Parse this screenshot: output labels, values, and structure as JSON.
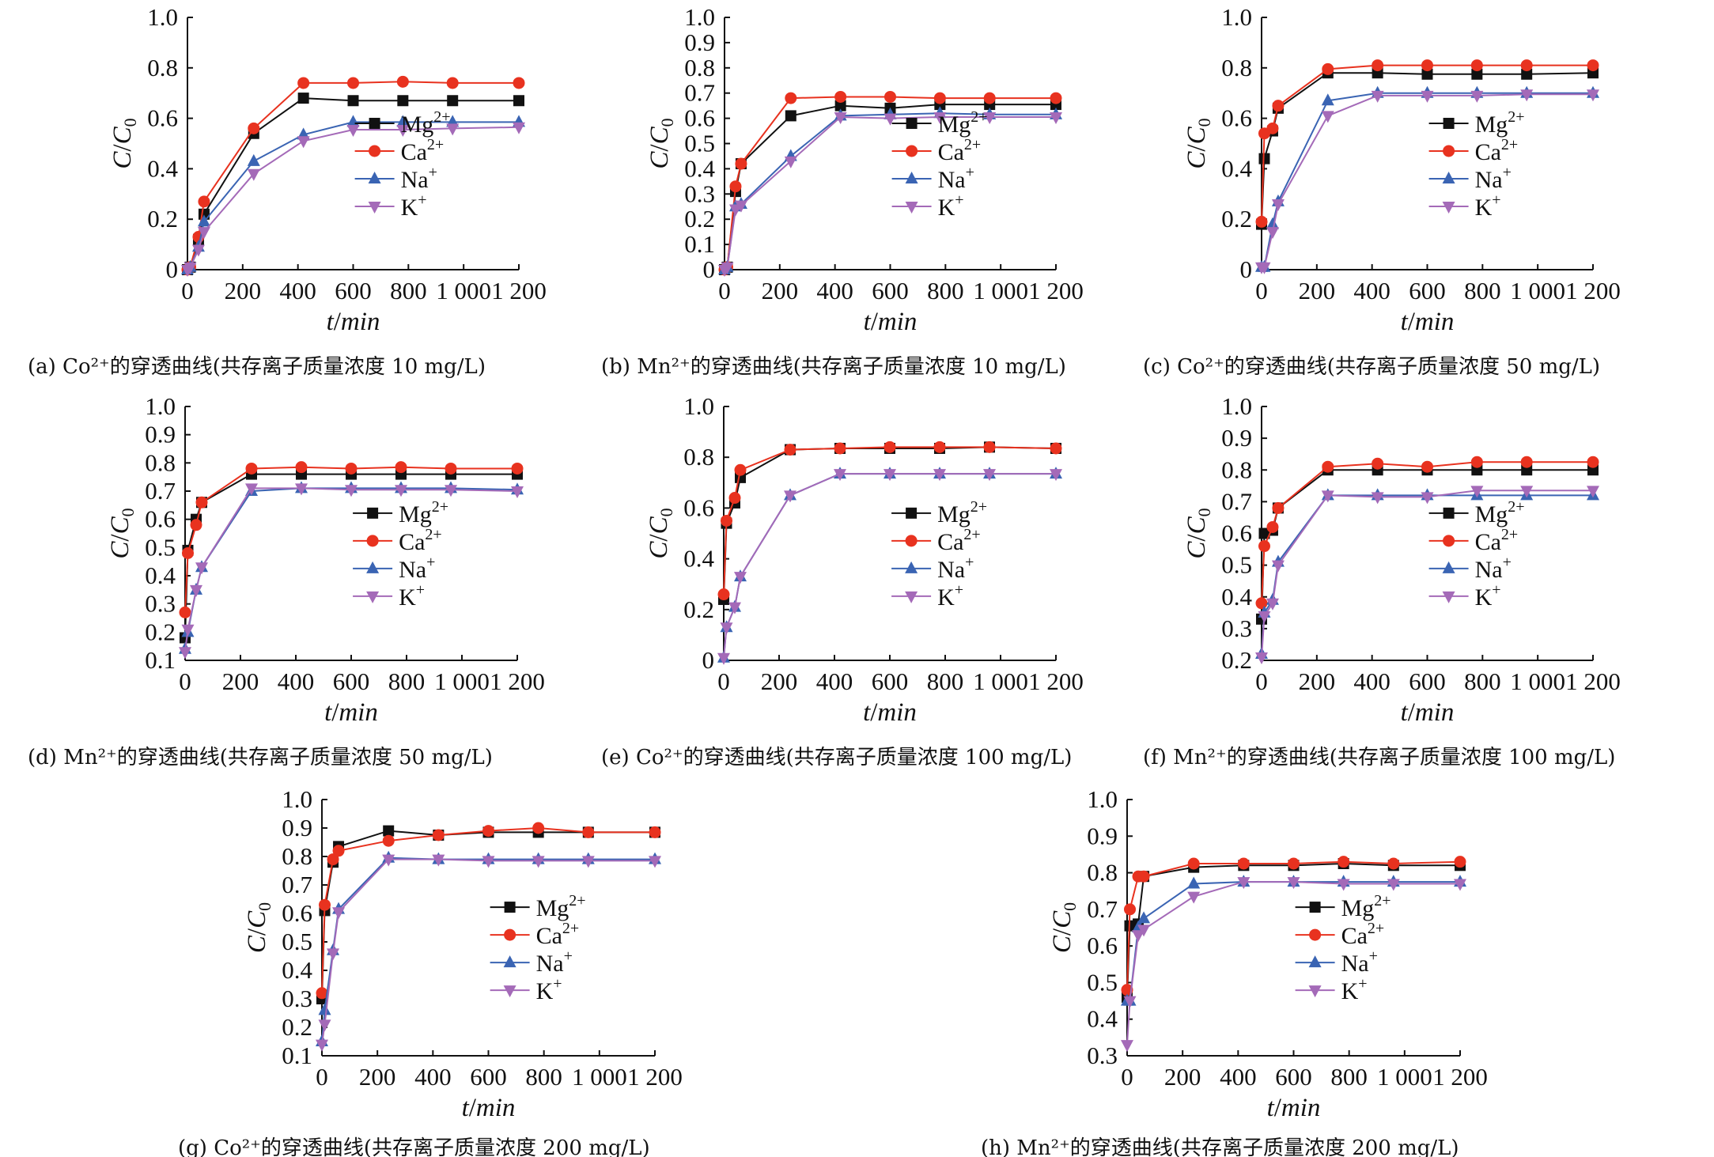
{
  "colors": {
    "Mg": "#111111",
    "Ca": "#e8321f",
    "Na": "#3a64b3",
    "K": "#a46ab8"
  },
  "markers": {
    "Mg": "square",
    "Ca": "circle",
    "Na": "triangle-up",
    "K": "triangle-down"
  },
  "chart_data": [
    {
      "id": "a",
      "type": "line",
      "caption": "(a) Co²⁺的穿透曲线(共存离子质量浓度 10 mg/L)",
      "xlabel": "t/min",
      "ylabel": "C/C₀",
      "xlim": [
        0,
        1200
      ],
      "ylim": [
        0,
        1.0
      ],
      "xticks": [
        0,
        200,
        400,
        600,
        800,
        1000,
        1200
      ],
      "xtick_labels": [
        "0",
        "200",
        "400",
        "600",
        "800",
        "1 000",
        "1 200"
      ],
      "yticks": [
        0,
        0.2,
        0.4,
        0.6,
        0.8,
        1.0
      ],
      "ytick_labels": [
        "0",
        "0.2",
        "0.4",
        "0.6",
        "0.8",
        "1.0"
      ],
      "legend_position": "right-middle",
      "x": [
        0,
        10,
        40,
        60,
        240,
        420,
        600,
        780,
        960,
        1200
      ],
      "series": [
        {
          "name": "Mg2+",
          "key": "Mg",
          "values": [
            0,
            0.01,
            0.12,
            0.22,
            0.54,
            0.68,
            0.67,
            0.67,
            0.67,
            0.67
          ]
        },
        {
          "name": "Ca2+",
          "key": "Ca",
          "values": [
            0,
            0.01,
            0.13,
            0.27,
            0.56,
            0.74,
            0.74,
            0.745,
            0.74,
            0.74
          ]
        },
        {
          "name": "Na+",
          "key": "Na",
          "values": [
            0,
            0.01,
            0.09,
            0.19,
            0.43,
            0.535,
            0.585,
            0.585,
            0.585,
            0.585
          ]
        },
        {
          "name": "K+",
          "key": "K",
          "values": [
            0,
            0.01,
            0.08,
            0.15,
            0.38,
            0.51,
            0.555,
            0.555,
            0.56,
            0.565
          ]
        }
      ]
    },
    {
      "id": "b",
      "type": "line",
      "caption": "(b) Mn²⁺的穿透曲线(共存离子质量浓度 10 mg/L)",
      "xlabel": "t/min",
      "ylabel": "C/C₀",
      "xlim": [
        0,
        1200
      ],
      "ylim": [
        0,
        1.0
      ],
      "xticks": [
        0,
        200,
        400,
        600,
        800,
        1000,
        1200
      ],
      "xtick_labels": [
        "0",
        "200",
        "400",
        "600",
        "800",
        "1 000",
        "1 200"
      ],
      "yticks": [
        0,
        0.1,
        0.2,
        0.3,
        0.4,
        0.5,
        0.6,
        0.7,
        0.8,
        0.9,
        1.0
      ],
      "ytick_labels": [
        "0",
        "0.1",
        "0.2",
        "0.3",
        "0.4",
        "0.5",
        "0.6",
        "0.7",
        "0.8",
        "0.9",
        "1.0"
      ],
      "legend_position": "right-middle",
      "x": [
        0,
        10,
        40,
        60,
        240,
        420,
        600,
        780,
        960,
        1200
      ],
      "series": [
        {
          "name": "Mg2+",
          "key": "Mg",
          "values": [
            0,
            0.01,
            0.31,
            0.42,
            0.61,
            0.65,
            0.64,
            0.655,
            0.655,
            0.655
          ]
        },
        {
          "name": "Ca2+",
          "key": "Ca",
          "values": [
            0,
            0.01,
            0.33,
            0.42,
            0.68,
            0.685,
            0.685,
            0.68,
            0.68,
            0.68
          ]
        },
        {
          "name": "Na+",
          "key": "Na",
          "values": [
            0,
            0.01,
            0.25,
            0.26,
            0.45,
            0.61,
            0.615,
            0.62,
            0.615,
            0.615
          ]
        },
        {
          "name": "K+",
          "key": "K",
          "values": [
            0,
            0.01,
            0.24,
            0.255,
            0.43,
            0.605,
            0.6,
            0.605,
            0.605,
            0.605
          ]
        }
      ]
    },
    {
      "id": "c",
      "type": "line",
      "caption": "(c) Co²⁺的穿透曲线(共存离子质量浓度 50 mg/L)",
      "xlabel": "t/min",
      "ylabel": "C/C₀",
      "xlim": [
        0,
        1200
      ],
      "ylim": [
        0,
        1.0
      ],
      "xticks": [
        0,
        200,
        400,
        600,
        800,
        1000,
        1200
      ],
      "xtick_labels": [
        "0",
        "200",
        "400",
        "600",
        "800",
        "1 000",
        "1 200"
      ],
      "yticks": [
        0,
        0.2,
        0.4,
        0.6,
        0.8,
        1.0
      ],
      "ytick_labels": [
        "0",
        "0.2",
        "0.4",
        "0.6",
        "0.8",
        "1.0"
      ],
      "legend_position": "right-middle",
      "x": [
        0,
        10,
        40,
        60,
        240,
        420,
        600,
        780,
        960,
        1200
      ],
      "series": [
        {
          "name": "Mg2+",
          "key": "Mg",
          "values": [
            0.18,
            0.44,
            0.55,
            0.64,
            0.78,
            0.78,
            0.775,
            0.775,
            0.775,
            0.78
          ]
        },
        {
          "name": "Ca2+",
          "key": "Ca",
          "values": [
            0.19,
            0.54,
            0.56,
            0.65,
            0.795,
            0.81,
            0.81,
            0.81,
            0.81,
            0.81
          ]
        },
        {
          "name": "Na+",
          "key": "Na",
          "values": [
            0.01,
            0.01,
            0.18,
            0.27,
            0.67,
            0.7,
            0.7,
            0.7,
            0.7,
            0.7
          ]
        },
        {
          "name": "K+",
          "key": "K",
          "values": [
            0.01,
            0.01,
            0.15,
            0.26,
            0.61,
            0.69,
            0.69,
            0.69,
            0.695,
            0.695
          ]
        }
      ]
    },
    {
      "id": "d",
      "type": "line",
      "caption": "(d) Mn²⁺的穿透曲线(共存离子质量浓度 50 mg/L)",
      "xlabel": "t/min",
      "ylabel": "C/C₀",
      "xlim": [
        0,
        1200
      ],
      "ylim": [
        0.1,
        1.0
      ],
      "xticks": [
        0,
        200,
        400,
        600,
        800,
        1000,
        1200
      ],
      "xtick_labels": [
        "0",
        "200",
        "400",
        "600",
        "800",
        "1 000",
        "1 200"
      ],
      "yticks": [
        0.1,
        0.2,
        0.3,
        0.4,
        0.5,
        0.6,
        0.7,
        0.8,
        0.9,
        1.0
      ],
      "ytick_labels": [
        "0.1",
        "0.2",
        "0.3",
        "0.4",
        "0.5",
        "0.6",
        "0.7",
        "0.8",
        "0.9",
        "1.0"
      ],
      "legend_position": "right-middle",
      "x": [
        0,
        10,
        40,
        60,
        240,
        420,
        600,
        780,
        960,
        1200
      ],
      "series": [
        {
          "name": "Mg2+",
          "key": "Mg",
          "values": [
            0.18,
            0.49,
            0.6,
            0.66,
            0.76,
            0.76,
            0.76,
            0.76,
            0.76,
            0.76
          ]
        },
        {
          "name": "Ca2+",
          "key": "Ca",
          "values": [
            0.27,
            0.48,
            0.58,
            0.66,
            0.78,
            0.785,
            0.78,
            0.785,
            0.78,
            0.78
          ]
        },
        {
          "name": "Na+",
          "key": "Na",
          "values": [
            0.14,
            0.2,
            0.35,
            0.43,
            0.7,
            0.71,
            0.71,
            0.71,
            0.71,
            0.705
          ]
        },
        {
          "name": "K+",
          "key": "K",
          "values": [
            0.13,
            0.21,
            0.35,
            0.43,
            0.71,
            0.71,
            0.705,
            0.705,
            0.705,
            0.7
          ]
        }
      ]
    },
    {
      "id": "e",
      "type": "line",
      "caption": "(e) Co²⁺的穿透曲线(共存离子质量浓度 100 mg/L)",
      "xlabel": "t/min",
      "ylabel": "C/C₀",
      "xlim": [
        0,
        1200
      ],
      "ylim": [
        0,
        1.0
      ],
      "xticks": [
        0,
        200,
        400,
        600,
        800,
        1000,
        1200
      ],
      "xtick_labels": [
        "0",
        "200",
        "400",
        "600",
        "800",
        "1 000",
        "1 200"
      ],
      "yticks": [
        0,
        0.2,
        0.4,
        0.6,
        0.8,
        1.0
      ],
      "ytick_labels": [
        "0",
        "0.2",
        "0.4",
        "0.6",
        "0.8",
        "1.0"
      ],
      "legend_position": "right-middle",
      "x": [
        0,
        10,
        40,
        60,
        240,
        420,
        600,
        780,
        960,
        1200
      ],
      "series": [
        {
          "name": "Mg2+",
          "key": "Mg",
          "values": [
            0.24,
            0.54,
            0.62,
            0.72,
            0.83,
            0.835,
            0.835,
            0.835,
            0.84,
            0.835
          ]
        },
        {
          "name": "Ca2+",
          "key": "Ca",
          "values": [
            0.26,
            0.55,
            0.64,
            0.75,
            0.83,
            0.835,
            0.84,
            0.84,
            0.84,
            0.835
          ]
        },
        {
          "name": "Na+",
          "key": "Na",
          "values": [
            0.01,
            0.13,
            0.21,
            0.33,
            0.65,
            0.735,
            0.735,
            0.735,
            0.735,
            0.735
          ]
        },
        {
          "name": "K+",
          "key": "K",
          "values": [
            0.01,
            0.13,
            0.21,
            0.33,
            0.65,
            0.735,
            0.735,
            0.735,
            0.735,
            0.735
          ]
        }
      ]
    },
    {
      "id": "f",
      "type": "line",
      "caption": "(f) Mn²⁺的穿透曲线(共存离子质量浓度 100 mg/L)",
      "xlabel": "t/min",
      "ylabel": "C/C₀",
      "xlim": [
        0,
        1200
      ],
      "ylim": [
        0.2,
        1.0
      ],
      "xticks": [
        0,
        200,
        400,
        600,
        800,
        1000,
        1200
      ],
      "xtick_labels": [
        "0",
        "200",
        "400",
        "600",
        "800",
        "1 000",
        "1 200"
      ],
      "yticks": [
        0.2,
        0.3,
        0.4,
        0.5,
        0.6,
        0.7,
        0.8,
        0.9,
        1.0
      ],
      "ytick_labels": [
        "0.2",
        "0.3",
        "0.4",
        "0.5",
        "0.6",
        "0.7",
        "0.8",
        "0.9",
        "1.0"
      ],
      "legend_position": "right-middle",
      "x": [
        0,
        10,
        40,
        60,
        240,
        420,
        600,
        780,
        960,
        1200
      ],
      "series": [
        {
          "name": "Mg2+",
          "key": "Mg",
          "values": [
            0.33,
            0.6,
            0.61,
            0.68,
            0.8,
            0.8,
            0.8,
            0.8,
            0.8,
            0.8
          ]
        },
        {
          "name": "Ca2+",
          "key": "Ca",
          "values": [
            0.38,
            0.56,
            0.62,
            0.68,
            0.81,
            0.82,
            0.81,
            0.825,
            0.825,
            0.825
          ]
        },
        {
          "name": "Na+",
          "key": "Na",
          "values": [
            0.22,
            0.35,
            0.39,
            0.51,
            0.72,
            0.72,
            0.72,
            0.72,
            0.72,
            0.72
          ]
        },
        {
          "name": "K+",
          "key": "K",
          "values": [
            0.21,
            0.34,
            0.38,
            0.5,
            0.72,
            0.715,
            0.715,
            0.735,
            0.735,
            0.735
          ]
        }
      ]
    },
    {
      "id": "g",
      "type": "line",
      "caption": "(g) Co²⁺的穿透曲线(共存离子质量浓度 200 mg/L)",
      "xlabel": "t/min",
      "ylabel": "C/C₀",
      "xlim": [
        0,
        1200
      ],
      "ylim": [
        0.1,
        1.0
      ],
      "xticks": [
        0,
        200,
        400,
        600,
        800,
        1000,
        1200
      ],
      "xtick_labels": [
        "0",
        "200",
        "400",
        "600",
        "800",
        "1 000",
        "1 200"
      ],
      "yticks": [
        0.1,
        0.2,
        0.3,
        0.4,
        0.5,
        0.6,
        0.7,
        0.8,
        0.9,
        1.0
      ],
      "ytick_labels": [
        "0.1",
        "0.2",
        "0.3",
        "0.4",
        "0.5",
        "0.6",
        "0.7",
        "0.8",
        "0.9",
        "1.0"
      ],
      "legend_position": "right-middle",
      "x": [
        0,
        10,
        40,
        60,
        240,
        420,
        600,
        780,
        960,
        1200
      ],
      "series": [
        {
          "name": "Mg2+",
          "key": "Mg",
          "values": [
            0.3,
            0.61,
            0.78,
            0.835,
            0.89,
            0.875,
            0.885,
            0.885,
            0.885,
            0.885
          ]
        },
        {
          "name": "Ca2+",
          "key": "Ca",
          "values": [
            0.32,
            0.63,
            0.79,
            0.82,
            0.855,
            0.875,
            0.89,
            0.9,
            0.885,
            0.885
          ]
        },
        {
          "name": "Na+",
          "key": "Na",
          "values": [
            0.15,
            0.26,
            0.47,
            0.615,
            0.795,
            0.79,
            0.79,
            0.79,
            0.79,
            0.79
          ]
        },
        {
          "name": "K+",
          "key": "K",
          "values": [
            0.14,
            0.21,
            0.46,
            0.605,
            0.79,
            0.79,
            0.785,
            0.785,
            0.785,
            0.785
          ]
        }
      ]
    },
    {
      "id": "h",
      "type": "line",
      "caption": "(h) Mn²⁺的穿透曲线(共存离子质量浓度 200 mg/L)",
      "xlabel": "t/min",
      "ylabel": "C/C₀",
      "xlim": [
        0,
        1200
      ],
      "ylim": [
        0.3,
        1.0
      ],
      "xticks": [
        0,
        200,
        400,
        600,
        800,
        1000,
        1200
      ],
      "xtick_labels": [
        "0",
        "200",
        "400",
        "600",
        "800",
        "1 000",
        "1 200"
      ],
      "yticks": [
        0.3,
        0.4,
        0.5,
        0.6,
        0.7,
        0.8,
        0.9,
        1.0
      ],
      "ytick_labels": [
        "0.3",
        "0.4",
        "0.5",
        "0.6",
        "0.7",
        "0.8",
        "0.9",
        "1.0"
      ],
      "legend_position": "right-middle",
      "x": [
        0,
        10,
        40,
        60,
        240,
        420,
        600,
        780,
        960,
        1200
      ],
      "series": [
        {
          "name": "Mg2+",
          "key": "Mg",
          "values": [
            0.46,
            0.655,
            0.66,
            0.79,
            0.815,
            0.82,
            0.82,
            0.825,
            0.82,
            0.82
          ]
        },
        {
          "name": "Ca2+",
          "key": "Ca",
          "values": [
            0.48,
            0.7,
            0.79,
            0.79,
            0.825,
            0.825,
            0.825,
            0.83,
            0.825,
            0.83
          ]
        },
        {
          "name": "Na+",
          "key": "Na",
          "values": [
            0.45,
            0.45,
            0.65,
            0.675,
            0.77,
            0.775,
            0.775,
            0.775,
            0.775,
            0.775
          ]
        },
        {
          "name": "K+",
          "key": "K",
          "values": [
            0.33,
            0.45,
            0.63,
            0.645,
            0.735,
            0.775,
            0.775,
            0.77,
            0.77,
            0.77
          ]
        }
      ]
    }
  ]
}
